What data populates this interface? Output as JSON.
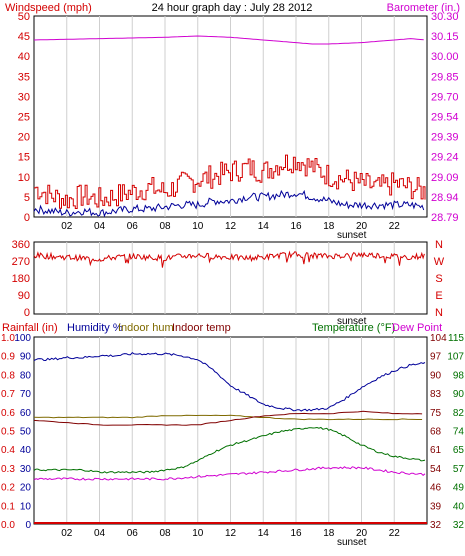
{
  "colors": {
    "red": "#d40000",
    "magenta": "#d000d0",
    "navy": "#000099",
    "darkred": "#800000",
    "olive": "#7f6a00",
    "green": "#007000",
    "black": "#000000",
    "grid": "#cfcfcf"
  },
  "top": {
    "left_title": "Windspeed (mph)",
    "center_title": "24 hour graph day : July 28 2012",
    "right_title": "Barometer (in.)"
  },
  "sunset_label": "sunset",
  "chart_data": [
    {
      "type": "line",
      "name": "wind-barometer",
      "ylabel": "Windspeed (mph)",
      "y2label": "Barometer (in.)",
      "x_ticks": [
        "02",
        "04",
        "06",
        "08",
        "10",
        "12",
        "14",
        "16",
        "18",
        "20",
        "22"
      ],
      "xlim": [
        0,
        24
      ],
      "ylim": [
        0,
        50
      ],
      "y_ticks": [
        "50",
        "45",
        "40",
        "35",
        "30",
        "25",
        "20",
        "15",
        "10",
        "5",
        "0"
      ],
      "y2lim": [
        28.79,
        30.3
      ],
      "y2_ticks": [
        "30.30",
        "30.15",
        "30.00",
        "29.85",
        "29.70",
        "29.54",
        "29.39",
        "29.24",
        "29.09",
        "28.94",
        "28.79"
      ],
      "series": [
        {
          "name": "Windspeed",
          "color": "#d40000",
          "x": [
            0,
            1,
            2,
            3,
            4,
            5,
            6,
            7,
            8,
            9,
            10,
            11,
            12,
            13,
            14,
            15,
            16,
            17,
            18,
            19,
            20,
            21,
            22,
            23,
            23.9
          ],
          "y": [
            7,
            5,
            4,
            5,
            4,
            5,
            6,
            7,
            6,
            8,
            9,
            10,
            11,
            12,
            11,
            13,
            14,
            12,
            10,
            9,
            8,
            7,
            8,
            7,
            6
          ]
        },
        {
          "name": "Barometer",
          "color": "#d000d0",
          "x": [
            0,
            2,
            4,
            6,
            8,
            10,
            12,
            14,
            16,
            17,
            18,
            19,
            20,
            22,
            23,
            23.9
          ],
          "y": [
            30.12,
            30.125,
            30.13,
            30.135,
            30.14,
            30.15,
            30.14,
            30.12,
            30.1,
            30.09,
            30.09,
            30.095,
            30.1,
            30.12,
            30.13,
            30.12
          ]
        },
        {
          "name": "Avg wind",
          "color": "#000099",
          "x": [
            0,
            1,
            2,
            3,
            4,
            5,
            6,
            7,
            8,
            9,
            10,
            11,
            12,
            13,
            14,
            15,
            16,
            17,
            18,
            19,
            20,
            21,
            22,
            23,
            23.9
          ],
          "y": [
            2,
            1.5,
            1,
            1.5,
            1,
            1.5,
            2,
            2,
            2.5,
            3,
            3,
            4,
            4,
            5,
            5,
            5.5,
            6,
            5,
            4,
            3,
            3,
            3,
            3,
            3,
            2.5
          ]
        }
      ]
    },
    {
      "type": "line",
      "name": "wind-direction",
      "ylim": [
        0,
        360
      ],
      "y_ticks": [
        "360",
        "270",
        "180",
        "90",
        "0"
      ],
      "y_right_ticks": [
        "N",
        "W",
        "S",
        "E",
        "N"
      ],
      "series": [
        {
          "name": "Wind direction",
          "color": "#d40000",
          "x": [
            0,
            1,
            2,
            3,
            4,
            5,
            6,
            7,
            8,
            9,
            10,
            11,
            12,
            13,
            14,
            15,
            16,
            17,
            18,
            19,
            20,
            21,
            22,
            23,
            23.9
          ],
          "y": [
            300,
            295,
            290,
            285,
            280,
            290,
            295,
            290,
            285,
            295,
            300,
            295,
            290,
            285,
            290,
            300,
            305,
            300,
            295,
            300,
            305,
            300,
            295,
            290,
            300
          ]
        }
      ]
    },
    {
      "type": "line",
      "name": "rain-humidity-temperature",
      "titles": [
        {
          "text": "Rainfall (in)",
          "color": "#d40000"
        },
        {
          "text": "Humidity %",
          "color": "#000099"
        },
        {
          "text": "Indoor hum",
          "color": "#7f6a00"
        },
        {
          "text": "Indoor temp",
          "color": "#800000"
        },
        {
          "text": "Temperature (°F)",
          "color": "#007000"
        },
        {
          "text": "Dew Point",
          "color": "#d000d0"
        }
      ],
      "x_ticks": [
        "02",
        "04",
        "06",
        "08",
        "10",
        "12",
        "14",
        "16",
        "18",
        "20",
        "22"
      ],
      "rain_ticks": [
        "1.0",
        "0.9",
        "0.8",
        "0.7",
        "0.6",
        "0.5",
        "0.4",
        "0.3",
        "0.2",
        "0.1",
        "0.0"
      ],
      "humidity_ticks": [
        "100",
        "90",
        "80",
        "70",
        "60",
        "50",
        "40",
        "30",
        "20",
        "10",
        "0"
      ],
      "indoor_temp_ticks": [
        "104",
        "97",
        "90",
        "83",
        "75",
        "68",
        "61",
        "54",
        "46",
        "39",
        "32"
      ],
      "temp_ticks": [
        "115",
        "107",
        "98",
        "90",
        "82",
        "74",
        "65",
        "57",
        "49",
        "40",
        "32"
      ],
      "rain_range": [
        0,
        1.0
      ],
      "humidity_range": [
        0,
        100
      ],
      "temp_range": [
        32,
        115
      ],
      "series": [
        {
          "name": "Humidity %",
          "color": "#000099",
          "x": [
            0,
            1,
            2,
            3,
            4,
            5,
            6,
            7,
            8,
            9,
            10,
            11,
            12,
            13,
            14,
            15,
            16,
            17,
            18,
            19,
            20,
            21,
            22,
            23,
            23.9
          ],
          "y": [
            88,
            88,
            89,
            89,
            90,
            90,
            91,
            91,
            91,
            90,
            88,
            82,
            74,
            69,
            64,
            62,
            61,
            61,
            62,
            67,
            73,
            78,
            82,
            85,
            86
          ]
        },
        {
          "name": "Indoor hum",
          "color": "#7f6a00",
          "x": [
            0,
            2,
            4,
            6,
            8,
            10,
            12,
            14,
            16,
            18,
            20,
            22,
            23.9
          ],
          "y": [
            57,
            57,
            57,
            57,
            58,
            58,
            58,
            57,
            56,
            56,
            56,
            56,
            56
          ]
        },
        {
          "name": "Indoor temp",
          "color": "#800000",
          "x": [
            0,
            2,
            4,
            6,
            8,
            10,
            12,
            14,
            16,
            18,
            20,
            22,
            23.9
          ],
          "y": [
            78,
            77,
            76,
            76,
            76,
            76,
            78,
            80,
            81,
            81,
            82,
            81,
            81
          ]
        },
        {
          "name": "Temperature",
          "color": "#007000",
          "x": [
            0,
            1,
            2,
            3,
            4,
            5,
            6,
            7,
            8,
            9,
            10,
            11,
            12,
            13,
            14,
            15,
            16,
            17,
            18,
            19,
            20,
            21,
            22,
            23,
            23.9
          ],
          "y": [
            56,
            56,
            56,
            56,
            55,
            55,
            55,
            55,
            56,
            57,
            60,
            64,
            67,
            69,
            71,
            73,
            74,
            75,
            74,
            71,
            67,
            64,
            62,
            61,
            60
          ]
        },
        {
          "name": "Dew Point",
          "color": "#d000d0",
          "x": [
            0,
            2,
            4,
            6,
            8,
            10,
            12,
            14,
            16,
            18,
            20,
            22,
            23.9
          ],
          "y": [
            52,
            52,
            52,
            52,
            52,
            53,
            54,
            55,
            56,
            57,
            57,
            55,
            54
          ]
        },
        {
          "name": "Rainfall",
          "color": "#d40000",
          "x": [
            0,
            23.9
          ],
          "y": [
            0,
            0
          ]
        }
      ]
    }
  ]
}
